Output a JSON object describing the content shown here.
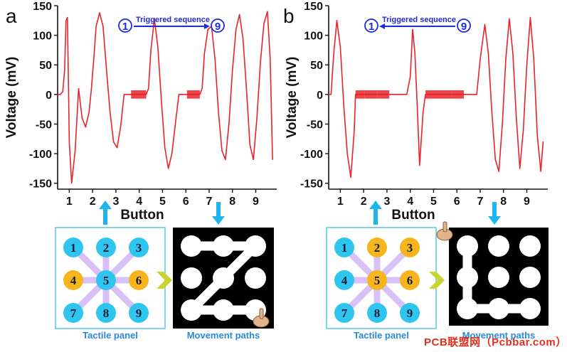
{
  "figure": {
    "watermark": "PCB联盟网（Pcbbar.com）",
    "colors": {
      "signal": "#e8232a",
      "arrow": "#1fb6f0",
      "cyan": "#2ec5ee",
      "yellow": "#f7b51d",
      "panel_border": "#56c8ec",
      "link": "#c7a8f5",
      "chevron": "#c9d430"
    }
  },
  "panels": [
    {
      "letter": "a",
      "annotation": {
        "start": "1",
        "label": "Triggered sequence",
        "end": "9",
        "direction": "forward"
      },
      "tactile_label": "Tactile panel",
      "movement_label": "Movement paths",
      "tactile_colors": [
        "cyan",
        "cyan",
        "cyan",
        "yellow",
        "cyan",
        "yellow",
        "cyan",
        "cyan",
        "cyan"
      ],
      "path_icon": "hand-pointer-icon",
      "path_nodes": [
        "1",
        "2",
        "3",
        "5",
        "7",
        "8",
        "9"
      ]
    },
    {
      "letter": "b",
      "annotation": {
        "start": "1",
        "label": "Triggered sequence",
        "end": "9",
        "direction": "backward"
      },
      "tactile_label": "Tactile panel",
      "movement_label": "Movement paths",
      "tactile_colors": [
        "cyan",
        "yellow",
        "yellow",
        "cyan",
        "yellow",
        "yellow",
        "cyan",
        "cyan",
        "cyan"
      ],
      "path_icon": "hand-pointer-icon",
      "path_nodes": [
        "1",
        "4",
        "7",
        "8",
        "9"
      ]
    }
  ],
  "tactile_numbers": [
    "1",
    "2",
    "3",
    "4",
    "5",
    "6",
    "7",
    "8",
    "9"
  ],
  "chart_data": [
    {
      "type": "line",
      "xlabel": "Button",
      "ylabel": "Voltage (mV)",
      "xlim": [
        0.5,
        9.9
      ],
      "ylim": [
        -160,
        150
      ],
      "yticks": [
        "-150",
        "-100",
        "-50",
        "0",
        "50",
        "100",
        "150"
      ],
      "xticks": [
        "1",
        "2",
        "3",
        "4",
        "5",
        "6",
        "7",
        "8",
        "9"
      ],
      "series": [
        {
          "x": [
            0.5,
            0.62,
            0.72,
            0.8,
            0.86,
            0.92,
            1.0,
            1.1,
            1.25,
            1.4,
            1.55,
            1.7,
            1.85,
            1.95,
            2.05,
            2.15,
            2.3,
            2.45,
            2.6,
            2.75,
            2.9,
            3.05,
            3.2,
            3.35,
            3.45,
            3.55,
            3.65,
            4.3,
            4.4,
            4.5,
            4.65,
            4.8,
            4.95,
            5.1,
            5.25,
            5.4,
            5.55,
            5.7,
            5.85,
            5.95,
            6.05,
            6.6,
            6.7,
            6.8,
            6.95,
            7.1,
            7.25,
            7.4,
            7.55,
            7.7,
            7.85,
            8.0,
            8.15,
            8.3,
            8.45,
            8.6,
            8.75,
            8.9,
            9.05,
            9.2,
            9.35,
            9.5,
            9.62,
            9.72
          ],
          "values": [
            0,
            0,
            5,
            40,
            125,
            130,
            -80,
            -150,
            -95,
            10,
            -40,
            -55,
            -30,
            10,
            60,
            115,
            138,
            115,
            40,
            -30,
            -80,
            -90,
            -55,
            0,
            0,
            0,
            0,
            0,
            10,
            75,
            128,
            80,
            -10,
            -90,
            -125,
            -100,
            -50,
            0,
            0,
            0,
            0,
            0,
            10,
            70,
            110,
            115,
            60,
            -30,
            -95,
            -110,
            -50,
            40,
            110,
            135,
            95,
            10,
            -85,
            -110,
            -40,
            55,
            120,
            140,
            60,
            -110
          ]
        }
      ]
    },
    {
      "type": "line",
      "xlabel": "Button",
      "ylabel": "Voltage (mV)",
      "xlim": [
        0.5,
        9.9
      ],
      "ylim": [
        -160,
        150
      ],
      "yticks": [
        "-150",
        "-100",
        "-50",
        "0",
        "50",
        "100",
        "150"
      ],
      "xticks": [
        "1",
        "2",
        "3",
        "4",
        "5",
        "6",
        "7",
        "8",
        "9"
      ],
      "series": [
        {
          "x": [
            0.5,
            0.6,
            0.72,
            0.85,
            1.0,
            1.15,
            1.3,
            1.45,
            1.6,
            1.65,
            2.05,
            2.6,
            3.1,
            3.25,
            3.4,
            3.55,
            3.7,
            3.85,
            4.0,
            4.1,
            4.2,
            4.3,
            4.4,
            4.55,
            4.65,
            5.2,
            5.8,
            6.3,
            6.55,
            6.7,
            6.85,
            7.0,
            7.2,
            7.35,
            7.5,
            7.65,
            7.8,
            7.95,
            8.1,
            8.25,
            8.4,
            8.55,
            8.7,
            8.85,
            9.0,
            9.15,
            9.3,
            9.45,
            9.6,
            9.7
          ],
          "values": [
            0,
            0,
            70,
            125,
            80,
            -20,
            -100,
            -140,
            -60,
            0,
            0,
            0,
            0,
            0,
            0,
            0,
            0,
            0,
            30,
            110,
            70,
            -20,
            -120,
            -30,
            0,
            0,
            0,
            0,
            0,
            0,
            0,
            60,
            118,
            70,
            -30,
            -110,
            -130,
            -50,
            60,
            128,
            70,
            -40,
            -125,
            -60,
            50,
            130,
            60,
            -70,
            -130,
            -80
          ]
        }
      ]
    }
  ]
}
